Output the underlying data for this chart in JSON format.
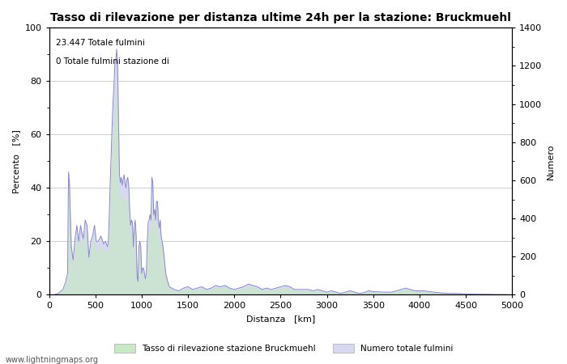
{
  "title": "Tasso di rilevazione per distanza ultime 24h per la stazione: Bruckmuehl",
  "xlabel": "Distanza   [km]",
  "ylabel_left": "Percento   [%]",
  "ylabel_right": "Numero",
  "annotation_line1": "23.447 Totale fulmini",
  "annotation_line2": "0 Totale fulmini stazione di",
  "xlim": [
    0,
    5000
  ],
  "ylim_left": [
    0,
    100
  ],
  "ylim_right": [
    0,
    1400
  ],
  "xticks": [
    0,
    500,
    1000,
    1500,
    2000,
    2500,
    3000,
    3500,
    4000,
    4500,
    5000
  ],
  "yticks_left": [
    0,
    20,
    40,
    60,
    80,
    100
  ],
  "yticks_right": [
    0,
    200,
    400,
    600,
    800,
    1000,
    1200,
    1400
  ],
  "legend_label_green": "Tasso di rilevazione stazione Bruckmuehl",
  "legend_label_blue": "Numero totale fulmini",
  "watermark": "www.lightningmaps.org",
  "line_color": "#8888cc",
  "fill_blue_color": "#d8d8f0",
  "fill_green_color": "#c8e8c8",
  "background_color": "#ffffff",
  "grid_color": "#bbbbbb",
  "title_fontsize": 10,
  "axis_fontsize": 8,
  "tick_fontsize": 8,
  "figsize": [
    7.0,
    4.5
  ],
  "dpi": 100
}
